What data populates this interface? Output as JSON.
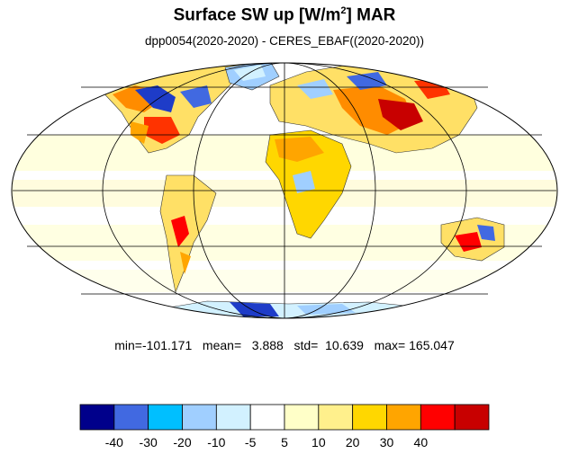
{
  "title": {
    "prefix": "Surface SW up [W/m",
    "superscript": "2",
    "suffix": "]  MAR"
  },
  "subtitle": "dpp0054(2020-2020) - CERES_EBAF((2020-2020))",
  "stats": {
    "text": "min=-101.171   mean=   3.888   std=  10.639   max= 165.047",
    "min": -101.171,
    "mean": 3.888,
    "std": 10.639,
    "max": 165.047
  },
  "colorbar": {
    "colors": [
      "#00008b",
      "#4169e1",
      "#00bfff",
      "#a0cfff",
      "#d2f1ff",
      "#ffffff",
      "#ffffc8",
      "#fff08c",
      "#ffd700",
      "#ffa500",
      "#ff0000",
      "#c80000"
    ],
    "tick_labels": [
      "-40",
      "-30",
      "-20",
      "-10",
      "-5",
      "5",
      "10",
      "20",
      "30",
      "40"
    ]
  },
  "map": {
    "projection": "Mollweide",
    "graticule_latitudes": [
      -60,
      -30,
      0,
      30,
      60
    ],
    "graticule_longitudes": [
      -120,
      -60,
      0,
      60,
      120
    ]
  }
}
